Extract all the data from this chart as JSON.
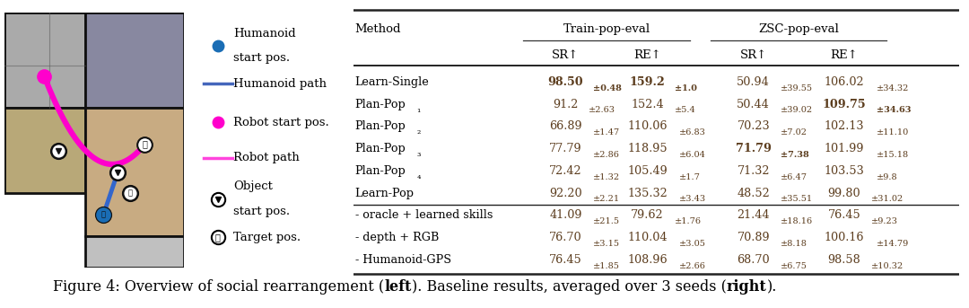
{
  "rows": [
    {
      "method": "Learn-Single",
      "method_sub": "",
      "train_sr": "98.50",
      "train_sr_pm": "0.48",
      "train_re": "159.2",
      "train_re_pm": "1.0",
      "zsc_sr": "50.94",
      "zsc_sr_pm": "39.55",
      "zsc_re": "106.02",
      "zsc_re_pm": "34.32",
      "bold_train_sr": true,
      "bold_train_re": true,
      "bold_zsc_sr": false,
      "bold_zsc_re": false
    },
    {
      "method": "Plan-Pop",
      "method_sub": "1",
      "train_sr": "91.2",
      "train_sr_pm": "2.63",
      "train_re": "152.4",
      "train_re_pm": "5.4",
      "zsc_sr": "50.44",
      "zsc_sr_pm": "39.02",
      "zsc_re": "109.75",
      "zsc_re_pm": "34.63",
      "bold_train_sr": false,
      "bold_train_re": false,
      "bold_zsc_sr": false,
      "bold_zsc_re": true
    },
    {
      "method": "Plan-Pop",
      "method_sub": "2",
      "train_sr": "66.89",
      "train_sr_pm": "1.47",
      "train_re": "110.06",
      "train_re_pm": "6.83",
      "zsc_sr": "70.23",
      "zsc_sr_pm": "7.02",
      "zsc_re": "102.13",
      "zsc_re_pm": "11.10",
      "bold_train_sr": false,
      "bold_train_re": false,
      "bold_zsc_sr": false,
      "bold_zsc_re": false
    },
    {
      "method": "Plan-Pop",
      "method_sub": "3",
      "train_sr": "77.79",
      "train_sr_pm": "2.86",
      "train_re": "118.95",
      "train_re_pm": "6.04",
      "zsc_sr": "71.79",
      "zsc_sr_pm": "7.38",
      "zsc_re": "101.99",
      "zsc_re_pm": "15.18",
      "bold_train_sr": false,
      "bold_train_re": false,
      "bold_zsc_sr": true,
      "bold_zsc_re": false
    },
    {
      "method": "Plan-Pop",
      "method_sub": "4",
      "train_sr": "72.42",
      "train_sr_pm": "1.32",
      "train_re": "105.49",
      "train_re_pm": "1.7",
      "zsc_sr": "71.32",
      "zsc_sr_pm": "6.47",
      "zsc_re": "103.53",
      "zsc_re_pm": "9.8",
      "bold_train_sr": false,
      "bold_train_re": false,
      "bold_zsc_sr": false,
      "bold_zsc_re": false
    },
    {
      "method": "Learn-Pop",
      "method_sub": "",
      "train_sr": "92.20",
      "train_sr_pm": "2.21",
      "train_re": "135.32",
      "train_re_pm": "3.43",
      "zsc_sr": "48.52",
      "zsc_sr_pm": "35.51",
      "zsc_re": "99.80",
      "zsc_re_pm": "31.02",
      "bold_train_sr": false,
      "bold_train_re": false,
      "bold_zsc_sr": false,
      "bold_zsc_re": false
    },
    {
      "method": "- oracle + learned skills",
      "method_sub": "",
      "train_sr": "41.09",
      "train_sr_pm": "21.5",
      "train_re": "79.62",
      "train_re_pm": "1.76",
      "zsc_sr": "21.44",
      "zsc_sr_pm": "18.16",
      "zsc_re": "76.45",
      "zsc_re_pm": "9.23",
      "bold_train_sr": false,
      "bold_train_re": false,
      "bold_zsc_sr": false,
      "bold_zsc_re": false
    },
    {
      "method": "- depth + RGB",
      "method_sub": "",
      "train_sr": "76.70",
      "train_sr_pm": "3.15",
      "train_re": "110.04",
      "train_re_pm": "3.05",
      "zsc_sr": "70.89",
      "zsc_sr_pm": "8.18",
      "zsc_re": "100.16",
      "zsc_re_pm": "14.79",
      "bold_train_sr": false,
      "bold_train_re": false,
      "bold_zsc_sr": false,
      "bold_zsc_re": false
    },
    {
      "method": "- Humanoid-GPS",
      "method_sub": "",
      "train_sr": "76.45",
      "train_sr_pm": "1.85",
      "train_re": "108.96",
      "train_re_pm": "2.66",
      "zsc_sr": "68.70",
      "zsc_sr_pm": "6.75",
      "zsc_re": "98.58",
      "zsc_re_pm": "10.32",
      "bold_train_sr": false,
      "bold_train_re": false,
      "bold_zsc_sr": false,
      "bold_zsc_re": false
    }
  ],
  "legend_items": [
    {
      "label1": "Humanoid",
      "label2": "start pos.",
      "type": "dot",
      "color": "#1a6db5"
    },
    {
      "label1": "Humanoid path",
      "label2": "",
      "type": "line",
      "color": "#4477bb"
    },
    {
      "label1": "Robot start pos.",
      "label2": "",
      "type": "dot",
      "color": "#ff00ff"
    },
    {
      "label1": "Robot path",
      "label2": "",
      "type": "line",
      "color": "#ff44ff"
    },
    {
      "label1": "Object",
      "label2": "start pos.",
      "type": "pin_circle",
      "color": "#000000"
    },
    {
      "label1": "Target pos.",
      "label2": "",
      "type": "pin_flag",
      "color": "#000000"
    }
  ],
  "caption_parts": [
    [
      "Figure 4: Overview of social rearrangement (",
      false
    ],
    [
      "left",
      true
    ],
    [
      "). Baseline results, averaged over 3 seeds (",
      false
    ],
    [
      "right",
      true
    ],
    [
      ").",
      false
    ]
  ],
  "bg": "#ffffff",
  "text_brown": "#5c3d1e",
  "text_black": "#111111"
}
